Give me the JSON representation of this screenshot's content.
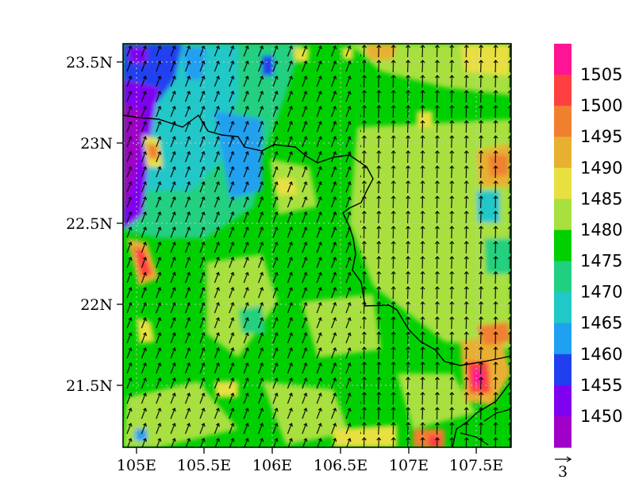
{
  "map": {
    "type": "filled-contour-with-wind-vectors",
    "x_ticks": [
      "105E",
      "105.5E",
      "106E",
      "106.5E",
      "107E",
      "107.5E"
    ],
    "y_ticks": [
      "23.5N",
      "23N",
      "22.5N",
      "22N",
      "21.5N"
    ],
    "lon_range": [
      104.9,
      107.75
    ],
    "lat_range": [
      21.1,
      23.65
    ],
    "x_tick_values": [
      105.0,
      105.5,
      106.0,
      106.5,
      107.0,
      107.5
    ],
    "y_tick_values": [
      23.5,
      23.0,
      22.5,
      22.0,
      21.5
    ],
    "grid": "dotted",
    "vector_reference_label": "3",
    "legend": {
      "placement": "right",
      "labels": [
        "1505",
        "1500",
        "1495",
        "1490",
        "1485",
        "1480",
        "1475",
        "1470",
        "1465",
        "1460",
        "1455",
        "1450"
      ],
      "colors": [
        "#ff1493",
        "#ff4040",
        "#f08030",
        "#e8b030",
        "#e8e040",
        "#a8e040",
        "#00d000",
        "#20d080",
        "#20c8c8",
        "#20a0f0",
        "#2040f0",
        "#8000f0",
        "#a000c8"
      ]
    }
  }
}
